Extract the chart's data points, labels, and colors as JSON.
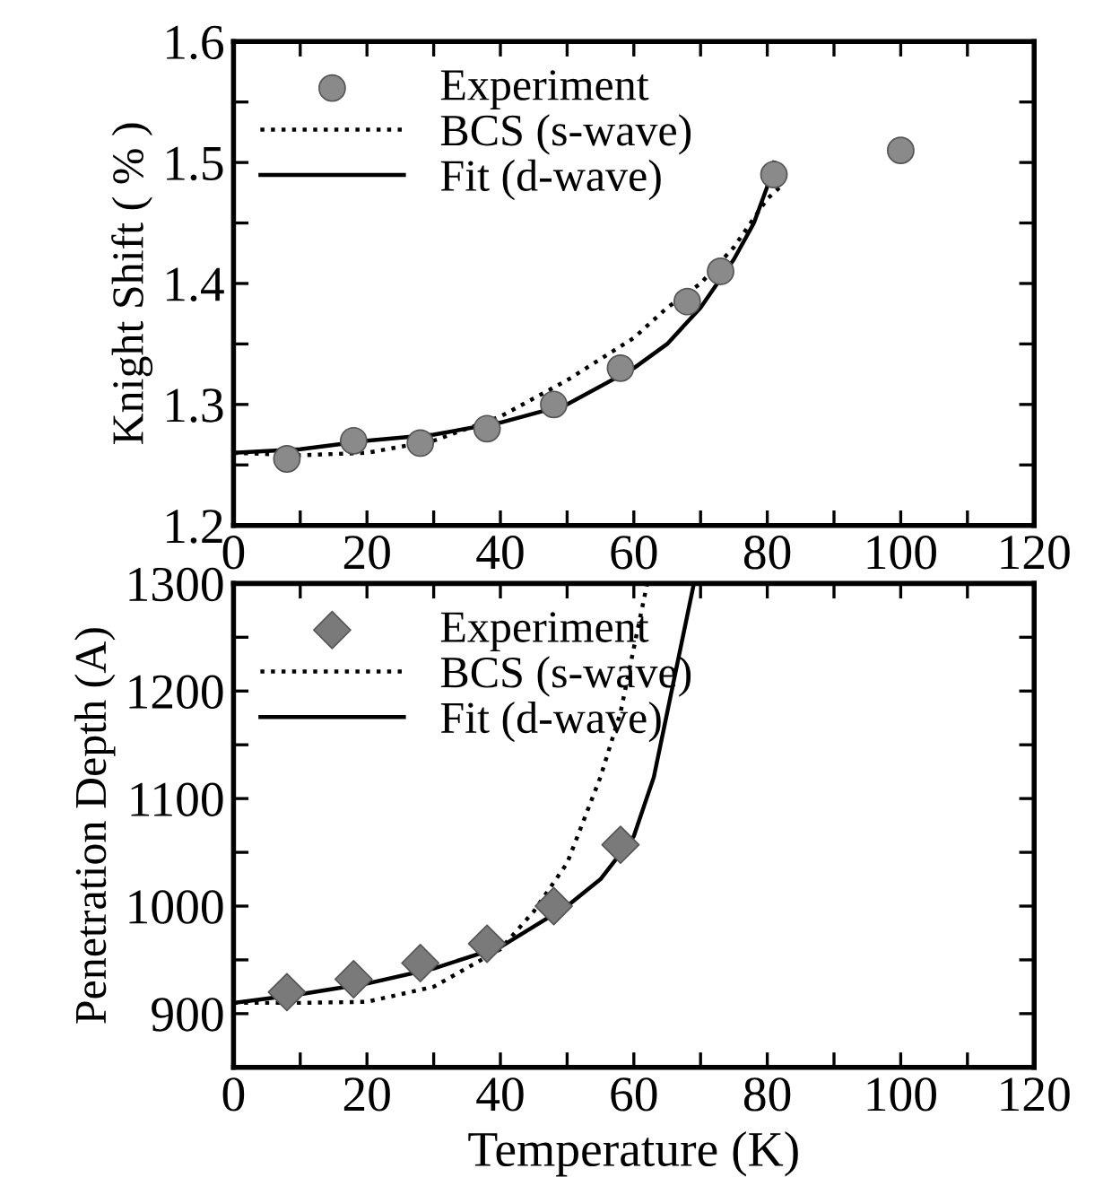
{
  "chart_data": [
    {
      "type": "scatter",
      "ylabel": "Knight Shift ( % )",
      "xlim": [
        0,
        120
      ],
      "ylim": [
        1.2,
        1.6
      ],
      "xticks": [
        0,
        {
          "value": 10,
          "label": null
        },
        20,
        {
          "value": 30,
          "label": null
        },
        40,
        {
          "value": 50,
          "label": null
        },
        60,
        {
          "value": 70,
          "label": null
        },
        80,
        {
          "value": 90,
          "label": null
        },
        100,
        {
          "value": 110,
          "label": null
        },
        120
      ],
      "yticks": [
        1.2,
        {
          "value": 1.25,
          "label": null
        },
        1.3,
        {
          "value": 1.35,
          "label": null
        },
        1.4,
        {
          "value": 1.45,
          "label": null
        },
        1.5,
        {
          "value": 1.55,
          "label": null
        },
        1.6
      ],
      "legend": "top left",
      "series": [
        {
          "name": "Experiment",
          "marker": "circle",
          "color": "#8a8a8a",
          "x": [
            8,
            18,
            28,
            38,
            48,
            58,
            68,
            73,
            81,
            100
          ],
          "values": [
            1.255,
            1.27,
            1.268,
            1.28,
            1.3,
            1.33,
            1.385,
            1.41,
            1.49,
            1.51
          ]
        },
        {
          "name": "BCS (s-wave)",
          "type": "line",
          "line_style": "dotted",
          "color": "#000000",
          "x": [
            0,
            10,
            20,
            30,
            40,
            50,
            60,
            65,
            70,
            75,
            80,
            82
          ],
          "values": [
            1.26,
            1.258,
            1.26,
            1.27,
            1.29,
            1.32,
            1.355,
            1.38,
            1.4,
            1.43,
            1.47,
            1.48
          ]
        },
        {
          "name": "Fit (d-wave)",
          "type": "line",
          "line_style": "solid",
          "color": "#000000",
          "x": [
            0,
            10,
            20,
            30,
            40,
            50,
            60,
            65,
            70,
            75,
            78,
            80,
            81
          ],
          "values": [
            1.26,
            1.263,
            1.27,
            1.275,
            1.285,
            1.3,
            1.33,
            1.35,
            1.38,
            1.42,
            1.45,
            1.48,
            1.5
          ]
        }
      ]
    },
    {
      "type": "scatter",
      "ylabel": "Penetration Depth (A)",
      "xlabel": "Temperature (K)",
      "xlim": [
        0,
        120
      ],
      "ylim": [
        850,
        1300
      ],
      "xticks": [
        0,
        {
          "value": 10,
          "label": null
        },
        20,
        {
          "value": 30,
          "label": null
        },
        40,
        {
          "value": 50,
          "label": null
        },
        60,
        {
          "value": 70,
          "label": null
        },
        80,
        {
          "value": 90,
          "label": null
        },
        100,
        {
          "value": 110,
          "label": null
        },
        120
      ],
      "yticks": [
        {
          "value": 850,
          "label": null
        },
        900,
        {
          "value": 950,
          "label": null
        },
        1000,
        {
          "value": 1050,
          "label": null
        },
        1100,
        {
          "value": 1150,
          "label": null
        },
        1200,
        {
          "value": 1250,
          "label": null
        },
        1300
      ],
      "legend": "top left",
      "series": [
        {
          "name": "Experiment",
          "marker": "diamond",
          "color": "#7a7a7a",
          "x": [
            8,
            18,
            28,
            38,
            48,
            58
          ],
          "values": [
            920,
            932,
            947,
            965,
            1000,
            1057
          ]
        },
        {
          "name": "BCS (s-wave)",
          "type": "line",
          "line_style": "dotted",
          "color": "#000000",
          "x": [
            0,
            10,
            20,
            30,
            40,
            45,
            50,
            55,
            58,
            60,
            62
          ],
          "values": [
            910,
            910,
            911,
            925,
            960,
            995,
            1040,
            1120,
            1180,
            1240,
            1300
          ]
        },
        {
          "name": "Fit (d-wave)",
          "type": "line",
          "line_style": "solid",
          "color": "#000000",
          "x": [
            0,
            10,
            20,
            30,
            40,
            50,
            55,
            60,
            63,
            65,
            67,
            69
          ],
          "values": [
            910,
            918,
            928,
            942,
            962,
            1000,
            1025,
            1065,
            1120,
            1180,
            1240,
            1300
          ]
        }
      ]
    }
  ]
}
